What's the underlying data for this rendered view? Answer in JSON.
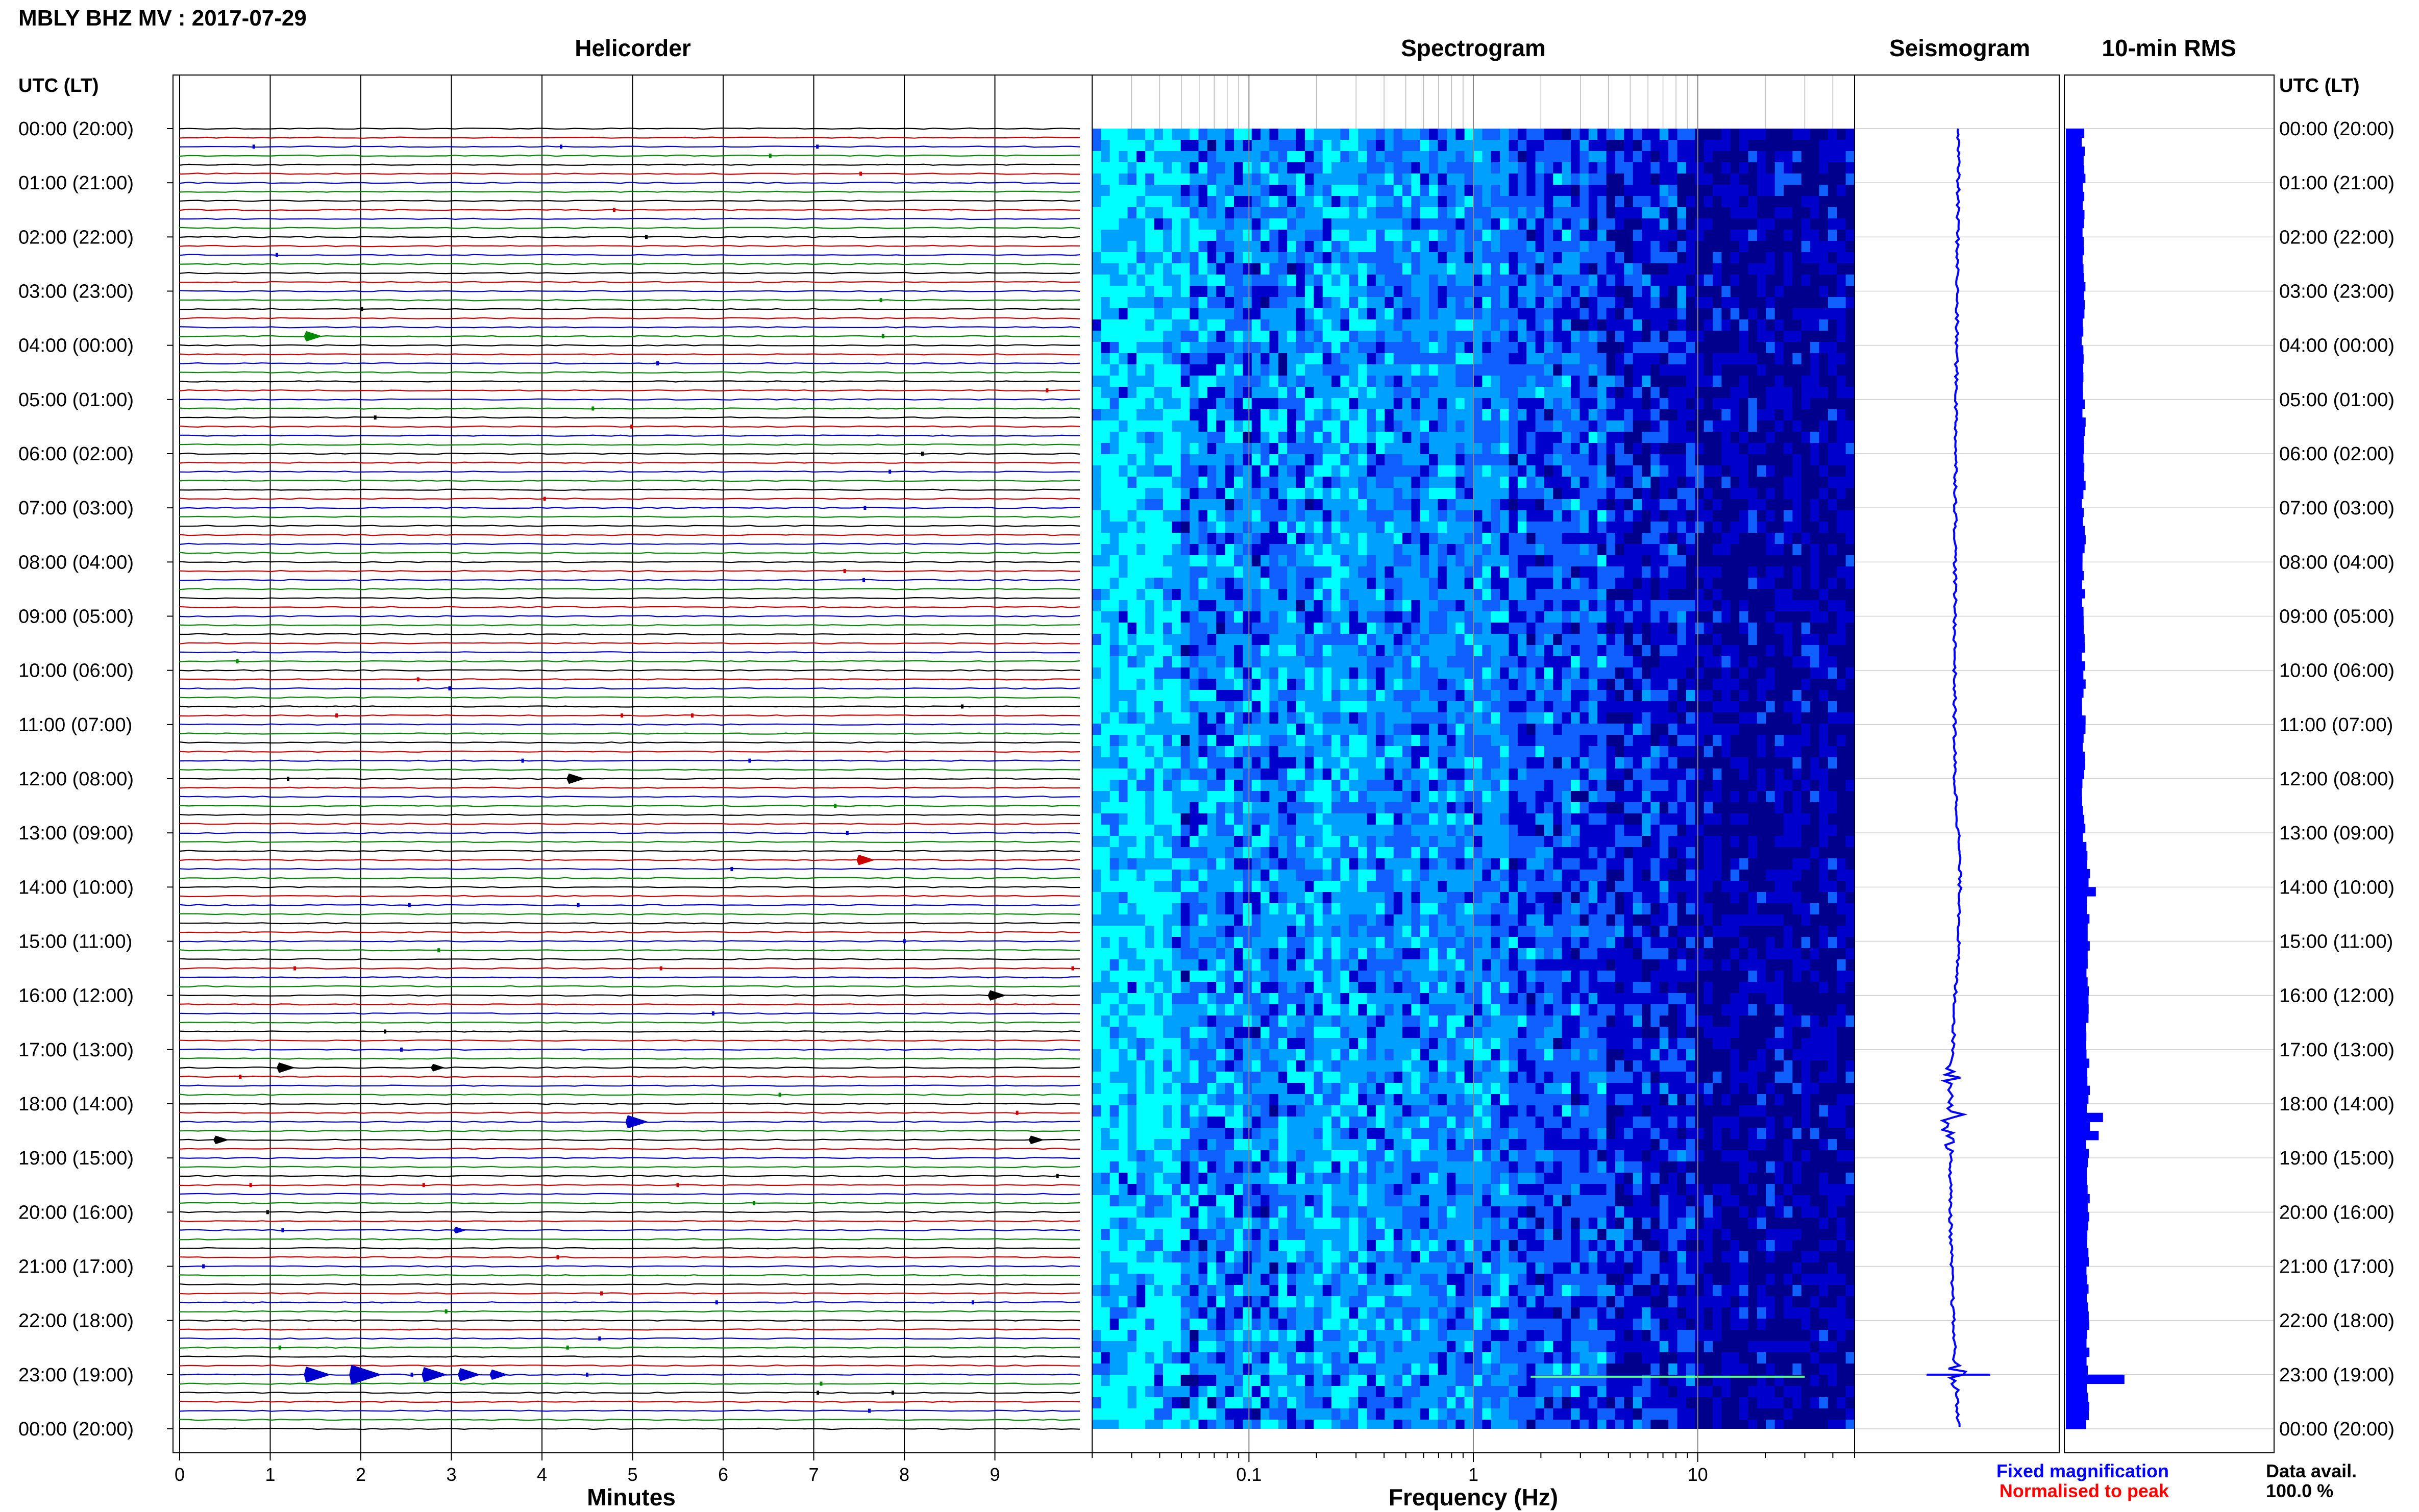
{
  "title": "MBLY BHZ MV : 2017-07-29",
  "chart_data": [
    {
      "type": "line",
      "panel": "Helicorder",
      "title": "Helicorder",
      "xlabel": "Minutes",
      "ylabel": "UTC (LT)",
      "xlim": [
        0,
        10
      ],
      "x_ticks": [
        "0",
        "1",
        "2",
        "3",
        "4",
        "5",
        "6",
        "7",
        "8",
        "9"
      ],
      "rows_per_hour": 6,
      "trace_colors": [
        "#000000",
        "#cc0000",
        "#0000cc",
        "#008800"
      ],
      "events": [
        {
          "hour": 3.833,
          "minute": 1.4,
          "amp": 1
        },
        {
          "hour": 12.0,
          "minute": 4.3,
          "amp": 1
        },
        {
          "hour": 13.5,
          "minute": 7.5,
          "amp": 1
        },
        {
          "hour": 16.0,
          "minute": 8.95,
          "amp": 1
        },
        {
          "hour": 17.333,
          "minute": 1.1,
          "amp": 1
        },
        {
          "hour": 17.333,
          "minute": 2.8,
          "amp": 0.7
        },
        {
          "hour": 18.333,
          "minute": 4.95,
          "amp": 1.3
        },
        {
          "hour": 18.667,
          "minute": 0.4,
          "amp": 0.8
        },
        {
          "hour": 18.667,
          "minute": 9.4,
          "amp": 0.8
        },
        {
          "hour": 20.333,
          "minute": 3.05,
          "amp": 0.6
        },
        {
          "hour": 23.0,
          "minute": 1.4,
          "amp": 1.6
        },
        {
          "hour": 23.0,
          "minute": 1.9,
          "amp": 2.0
        },
        {
          "hour": 23.0,
          "minute": 2.7,
          "amp": 1.5
        },
        {
          "hour": 23.0,
          "minute": 3.1,
          "amp": 1.3
        },
        {
          "hour": 23.0,
          "minute": 3.45,
          "amp": 1.0
        }
      ]
    },
    {
      "type": "heatmap",
      "panel": "Spectrogram",
      "title": "Spectrogram",
      "xlabel": "Frequency (Hz)",
      "x_scale": "log",
      "xlim": [
        0.02,
        50
      ],
      "x_ticks": [
        "0.1",
        "1",
        "10"
      ],
      "ylim_hours": [
        0,
        24
      ],
      "colors": [
        "#00ffff",
        "#00a0ff",
        "#1060ff",
        "#0000cc",
        "#00008c"
      ]
    },
    {
      "type": "line",
      "panel": "Seismogram",
      "title": "Seismogram",
      "ylim_hours": [
        0,
        24
      ],
      "color": "#0000ff",
      "bursts_hours": [
        17.5,
        18.2,
        18.6,
        23.0
      ]
    },
    {
      "type": "bar",
      "panel": "10-min RMS",
      "title": "10-min RMS",
      "color": "#0000ff",
      "ylim_hours": [
        0,
        24
      ],
      "peaks": [
        {
          "hour": 14.0,
          "value": 2.0
        },
        {
          "hour": 18.2,
          "value": 3.0
        },
        {
          "hour": 18.5,
          "value": 2.4
        },
        {
          "hour": 23.0,
          "value": 6.0
        }
      ]
    }
  ],
  "time_labels": [
    "00:00 (20:00)",
    "01:00 (21:00)",
    "02:00 (22:00)",
    "03:00 (23:00)",
    "04:00 (00:00)",
    "05:00 (01:00)",
    "06:00 (02:00)",
    "07:00 (03:00)",
    "08:00 (04:00)",
    "09:00 (05:00)",
    "10:00 (06:00)",
    "11:00 (07:00)",
    "12:00 (08:00)",
    "13:00 (09:00)",
    "14:00 (10:00)",
    "15:00 (11:00)",
    "16:00 (12:00)",
    "17:00 (13:00)",
    "18:00 (14:00)",
    "19:00 (15:00)",
    "20:00 (16:00)",
    "21:00 (17:00)",
    "22:00 (18:00)",
    "23:00 (19:00)",
    "00:00 (20:00)"
  ],
  "utc_header_left": "UTC (LT)",
  "utc_header_right": "UTC (LT)",
  "legend": {
    "fixed": "Fixed magnification",
    "normalised": "Normalised to peak",
    "fixed_color": "#0000ff",
    "normalised_color": "#ff0000"
  },
  "data_avail": {
    "label": "Data avail.",
    "value": "100.0 %"
  }
}
